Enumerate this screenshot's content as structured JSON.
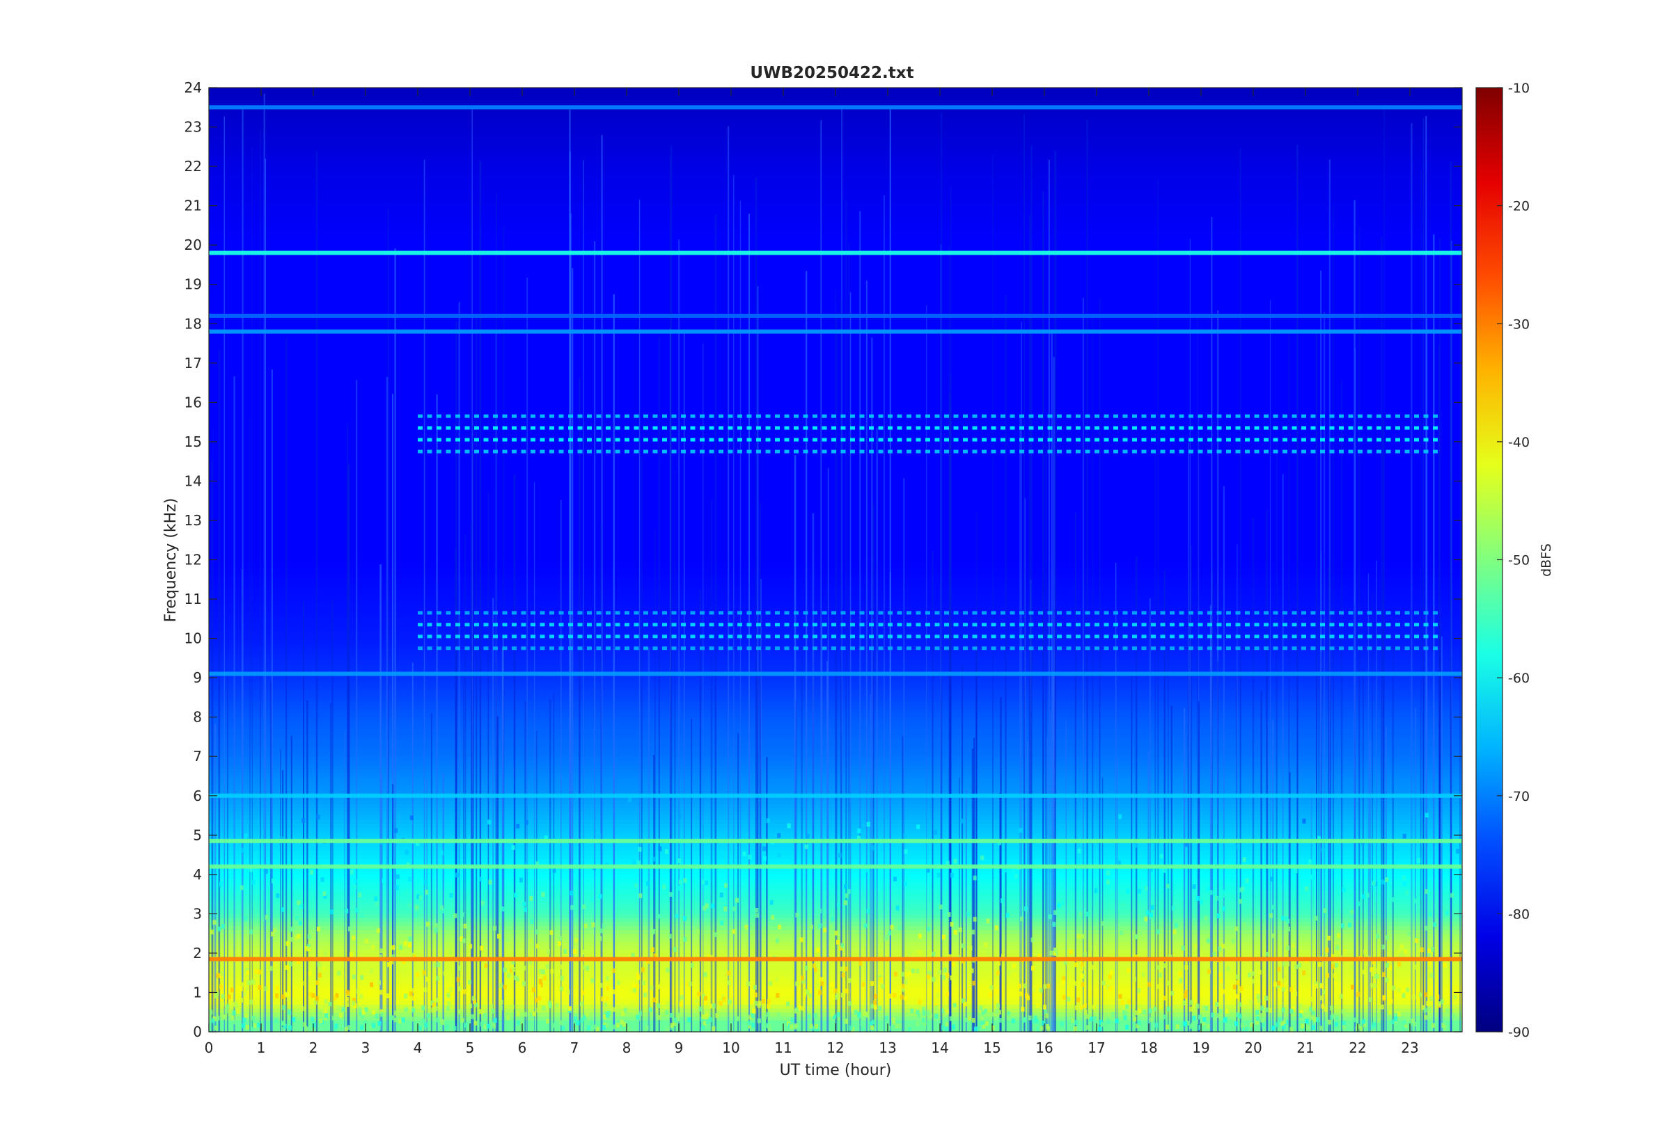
{
  "chart_data": {
    "type": "heatmap",
    "title": "UWB20250422.txt",
    "xlabel": "UT time (hour)",
    "ylabel": "Frequency (kHz)",
    "xlim": [
      0,
      24
    ],
    "ylim": [
      0,
      24
    ],
    "x_ticks": [
      0,
      1,
      2,
      3,
      4,
      5,
      6,
      7,
      8,
      9,
      10,
      11,
      12,
      13,
      14,
      15,
      16,
      17,
      18,
      19,
      20,
      21,
      22,
      23
    ],
    "y_ticks": [
      0,
      1,
      2,
      3,
      4,
      5,
      6,
      7,
      8,
      9,
      10,
      11,
      12,
      13,
      14,
      15,
      16,
      17,
      18,
      19,
      20,
      21,
      22,
      23,
      24
    ],
    "colorbar": {
      "label": "dBFS",
      "range": [
        -90,
        -10
      ],
      "ticks": [
        -10,
        -20,
        -30,
        -40,
        -50,
        -60,
        -70,
        -80,
        -90
      ],
      "colormap": "jet"
    },
    "spectral_profile": [
      {
        "f_khz": 0.25,
        "dbfs": -52
      },
      {
        "f_khz": 0.75,
        "dbfs": -42
      },
      {
        "f_khz": 1.0,
        "dbfs": -41
      },
      {
        "f_khz": 1.5,
        "dbfs": -43
      },
      {
        "f_khz": 2.0,
        "dbfs": -44
      },
      {
        "f_khz": 2.5,
        "dbfs": -48
      },
      {
        "f_khz": 3.0,
        "dbfs": -55
      },
      {
        "f_khz": 4.0,
        "dbfs": -60
      },
      {
        "f_khz": 5.0,
        "dbfs": -64
      },
      {
        "f_khz": 6.0,
        "dbfs": -68
      },
      {
        "f_khz": 7.0,
        "dbfs": -71
      },
      {
        "f_khz": 8.0,
        "dbfs": -73
      },
      {
        "f_khz": 9.0,
        "dbfs": -76
      },
      {
        "f_khz": 10.0,
        "dbfs": -78
      },
      {
        "f_khz": 12.0,
        "dbfs": -80
      },
      {
        "f_khz": 16.0,
        "dbfs": -80
      },
      {
        "f_khz": 20.0,
        "dbfs": -80
      },
      {
        "f_khz": 22.0,
        "dbfs": -82
      },
      {
        "f_khz": 24.0,
        "dbfs": -85
      }
    ],
    "narrowband_lines": [
      {
        "f_khz": 19.8,
        "dbfs": -58
      },
      {
        "f_khz": 23.5,
        "dbfs": -70
      },
      {
        "f_khz": 18.2,
        "dbfs": -72
      },
      {
        "f_khz": 17.8,
        "dbfs": -68
      },
      {
        "f_khz": 4.85,
        "dbfs": -52
      },
      {
        "f_khz": 4.2,
        "dbfs": -52
      },
      {
        "f_khz": 1.85,
        "dbfs": -30
      },
      {
        "f_khz": 6.0,
        "dbfs": -64
      },
      {
        "f_khz": 9.1,
        "dbfs": -68
      }
    ],
    "pulsed_bands": [
      {
        "f_khz": 15.2,
        "dbfs": -64
      },
      {
        "f_khz": 10.2,
        "dbfs": -66
      }
    ]
  }
}
